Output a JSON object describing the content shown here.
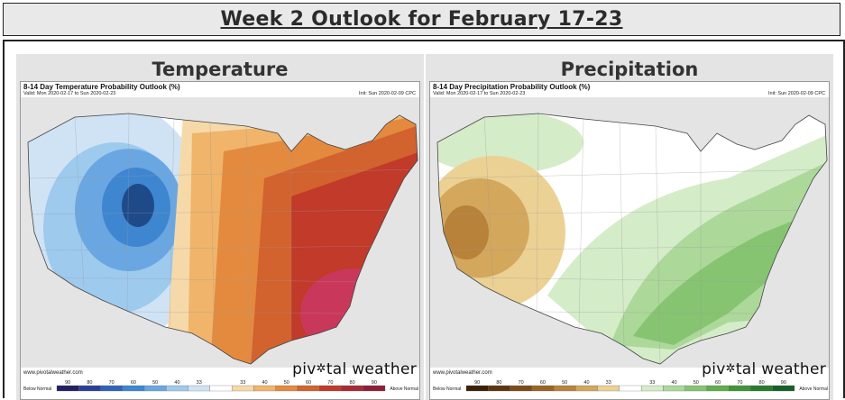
{
  "header": {
    "title": "Week 2 Outlook for February 17-23"
  },
  "panels": [
    {
      "title": "Temperature",
      "map_title": "8-14 Day Temperature Probability Outlook (%)",
      "valid": "Valid: Mon 2020-02-17 to Sun 2020-02-23",
      "init": "Init: Sun 2020-02-09 CPC",
      "credit": "www.pivotalweather.com",
      "brand": {
        "before": "piv",
        "glyph": "✲",
        "after": "tal weather"
      },
      "legend": {
        "low_label": "Below Normal",
        "high_label": "Above Normal",
        "ticks": [
          "90",
          "80",
          "70",
          "60",
          "50",
          "40",
          "33",
          "",
          "33",
          "40",
          "50",
          "60",
          "70",
          "80",
          "90"
        ],
        "colors": [
          "#232060",
          "#2c3e93",
          "#2f63ba",
          "#3f86d1",
          "#6aa7e2",
          "#9ecaee",
          "#cfe3f5",
          "#ffffff",
          "#f6d9a9",
          "#f0b46b",
          "#e48a3f",
          "#d2622e",
          "#c13a2a",
          "#a82a35",
          "#8d1f3a"
        ]
      }
    },
    {
      "title": "Precipitation",
      "map_title": "8-14 Day Precipitation Probability Outlook (%)",
      "valid": "Valid: Mon 2020-02-17 to Sun 2020-02-23",
      "init": "Init: Sun 2020-02-09 CPC",
      "credit": "www.pivotalweather.com",
      "brand": {
        "before": "piv",
        "glyph": "✲",
        "after": "tal weather"
      },
      "legend": {
        "low_label": "Below Normal",
        "high_label": "Above Normal",
        "ticks": [
          "90",
          "80",
          "70",
          "60",
          "50",
          "40",
          "33",
          "",
          "33",
          "40",
          "50",
          "60",
          "70",
          "80",
          "90"
        ],
        "colors": [
          "#3b2008",
          "#5c3510",
          "#7d4a18",
          "#9c6324",
          "#b9823a",
          "#d3a75c",
          "#ecd194",
          "#ffffff",
          "#d4ecc8",
          "#acd89a",
          "#86c471",
          "#5fae4e",
          "#3f9637",
          "#287c2c",
          "#15612a"
        ]
      }
    }
  ]
}
